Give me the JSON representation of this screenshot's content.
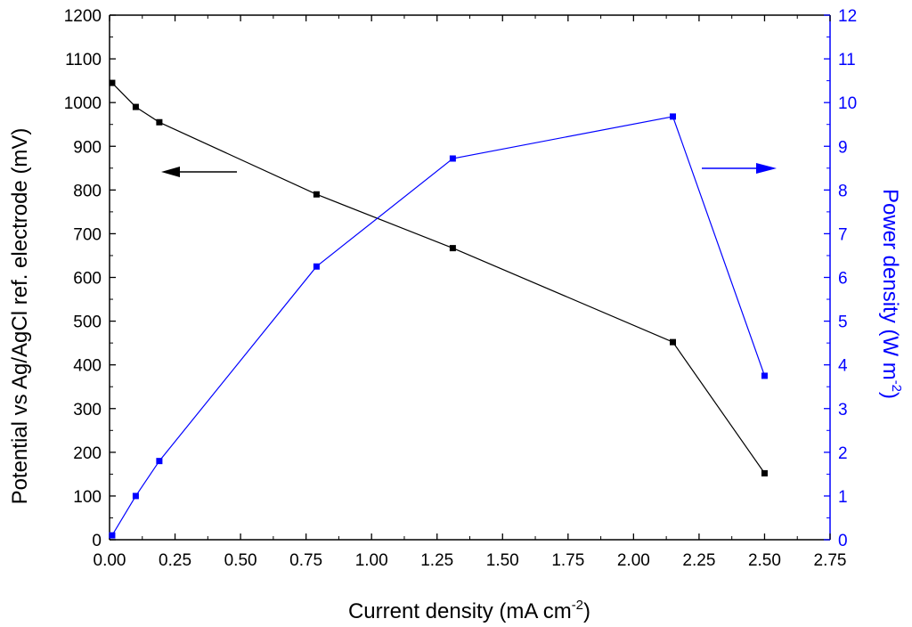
{
  "chart_data": {
    "type": "line",
    "xlabel": "Current density (mA cm",
    "xlabel_sup": "-2",
    "xlabel_end": ")",
    "ylabel_left": "Potential vs Ag/AgCl ref. electrode (mV)",
    "ylabel_right": "Power density (W m",
    "ylabel_right_sup": "-2",
    "ylabel_right_end": ")",
    "xlim": [
      0,
      2.75
    ],
    "ylim_left": [
      0,
      1200
    ],
    "ylim_right": [
      0,
      12
    ],
    "x_ticks": [
      "0.00",
      "0.25",
      "0.50",
      "0.75",
      "1.00",
      "1.25",
      "1.50",
      "1.75",
      "2.00",
      "2.25",
      "2.50",
      "2.75"
    ],
    "y_left_ticks": [
      "0",
      "100",
      "200",
      "300",
      "400",
      "500",
      "600",
      "700",
      "800",
      "900",
      "1000",
      "1100",
      "1200"
    ],
    "y_right_ticks": [
      "0",
      "1",
      "2",
      "3",
      "4",
      "5",
      "6",
      "7",
      "8",
      "9",
      "10",
      "11",
      "12"
    ],
    "grid": false,
    "series": [
      {
        "axis": "left",
        "color": "#000000",
        "x": [
          0.01,
          0.1,
          0.19,
          0.79,
          1.31,
          2.15,
          2.5
        ],
        "y": [
          1045,
          990,
          955,
          790,
          667,
          452,
          152
        ]
      },
      {
        "axis": "right",
        "color": "#0000ff",
        "x": [
          0.01,
          0.1,
          0.19,
          0.79,
          1.31,
          2.15,
          2.5
        ],
        "y": [
          0.1,
          1.0,
          1.8,
          6.25,
          8.72,
          9.68,
          3.75
        ]
      }
    ],
    "annotations": [
      {
        "type": "arrow",
        "direction": "left",
        "series": "left",
        "color": "#000000"
      },
      {
        "type": "arrow",
        "direction": "right",
        "series": "right",
        "color": "#0000ff"
      }
    ]
  }
}
